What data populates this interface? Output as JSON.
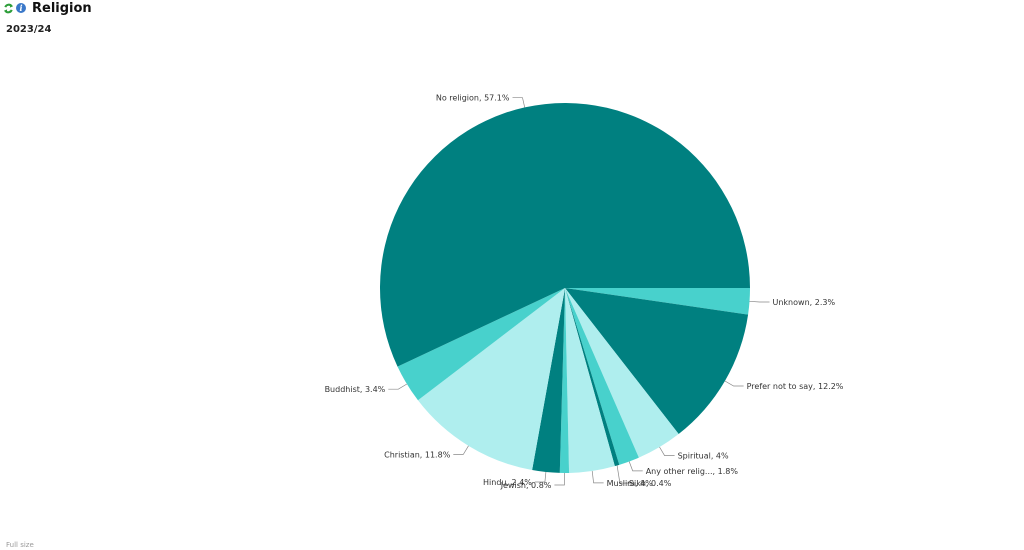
{
  "header": {
    "title": "Religion",
    "refresh_icon": "refresh-icon",
    "info_icon": "info-icon",
    "info_glyph": "i"
  },
  "subtitle": "2023/24",
  "footer": {
    "label": "Full size"
  },
  "colors": {
    "dark": "#008080",
    "medium": "#48d1cc",
    "light": "#afeeee"
  },
  "chart_data": {
    "type": "pie",
    "start_angle_deg": 0,
    "direction": "clockwise",
    "slices": [
      {
        "label": "Unknown, 2.3%",
        "value": 2.3,
        "color": "#48d1cc"
      },
      {
        "label": "Prefer not to say, 12.2%",
        "value": 12.2,
        "color": "#008080"
      },
      {
        "label": "Spiritual, 4%",
        "value": 4.0,
        "color": "#afeeee"
      },
      {
        "label": "Any other relig..., 1.8%",
        "value": 1.8,
        "color": "#48d1cc"
      },
      {
        "label": "Sikh, 0.4%",
        "value": 0.4,
        "color": "#008080"
      },
      {
        "label": "Muslim, 4%",
        "value": 4.0,
        "color": "#afeeee"
      },
      {
        "label": "Jewish, 0.8%",
        "value": 0.8,
        "color": "#48d1cc"
      },
      {
        "label": "Hindu, 2.4%",
        "value": 2.4,
        "color": "#008080"
      },
      {
        "label": "Christian, 11.8%",
        "value": 11.8,
        "color": "#afeeee"
      },
      {
        "label": "Buddhist, 3.4%",
        "value": 3.4,
        "color": "#48d1cc"
      },
      {
        "label": "No religion, 57.1%",
        "value": 57.1,
        "color": "#008080"
      }
    ]
  }
}
